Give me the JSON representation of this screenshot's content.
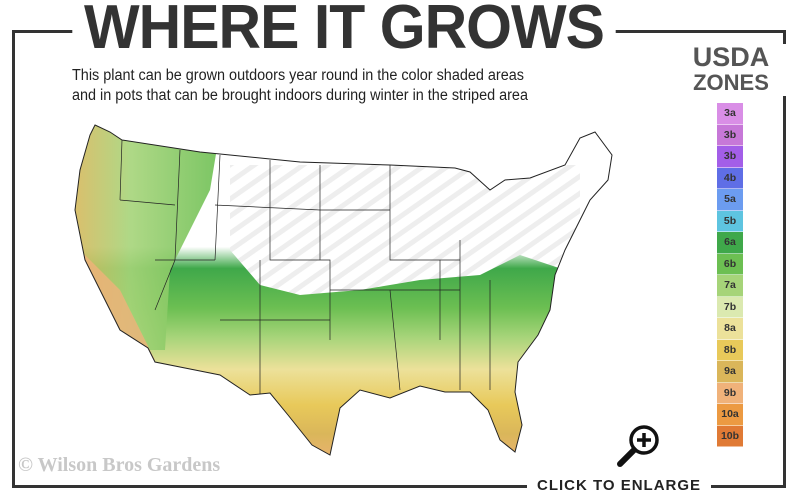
{
  "title": "WHERE IT GROWS",
  "subtitle_line1": "This plant can be grown outdoors year round in the color shaded areas",
  "subtitle_line2": "and in pots that can be brought indoors during winter in the striped area",
  "legend": {
    "title_line1": "USDA",
    "title_line2": "ZONES",
    "zones": [
      {
        "label": "3a",
        "color": "#d98ee6"
      },
      {
        "label": "3b",
        "color": "#c778d8"
      },
      {
        "label": "3b",
        "color": "#a35ee8"
      },
      {
        "label": "4b",
        "color": "#5f6ee6"
      },
      {
        "label": "5a",
        "color": "#6c9cf0"
      },
      {
        "label": "5b",
        "color": "#5ec4e0"
      },
      {
        "label": "6a",
        "color": "#3fa84a"
      },
      {
        "label": "6b",
        "color": "#6cbf52"
      },
      {
        "label": "7a",
        "color": "#a6d479"
      },
      {
        "label": "7b",
        "color": "#dbe9b0"
      },
      {
        "label": "8a",
        "color": "#ece19a"
      },
      {
        "label": "8b",
        "color": "#e8c95a"
      },
      {
        "label": "9a",
        "color": "#dab65a"
      },
      {
        "label": "9b",
        "color": "#f0b27a"
      },
      {
        "label": "10a",
        "color": "#ec9a42"
      },
      {
        "label": "10b",
        "color": "#e07a35"
      }
    ]
  },
  "watermark": "© Wilson Bros Gardens",
  "enlarge_label": "CLICK TO ENLARGE",
  "icons": {
    "enlarge": "zoom-in-magnifier-icon"
  }
}
